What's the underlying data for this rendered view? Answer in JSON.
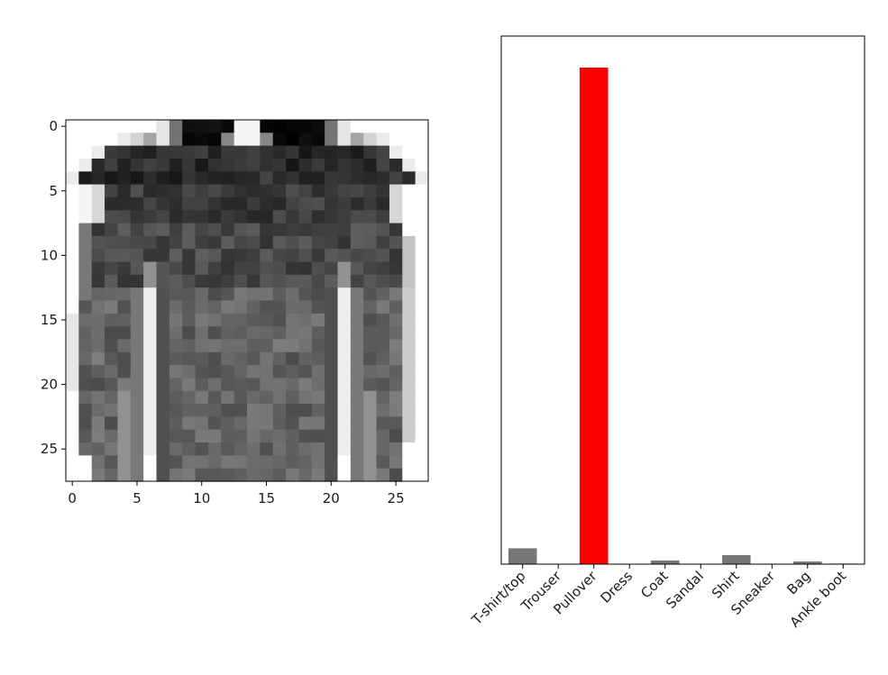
{
  "chart_data": [
    {
      "type": "heatmap",
      "title": "",
      "xlabel": "",
      "ylabel": "",
      "colormap": "Greys",
      "xlim": [
        -0.5,
        27.5
      ],
      "ylim": [
        27.5,
        -0.5
      ],
      "xticks": [
        0,
        5,
        10,
        15,
        20,
        25
      ],
      "yticks": [
        0,
        5,
        10,
        15,
        20,
        25
      ],
      "shape": [
        28,
        28
      ],
      "description_of_values": "28x28 grayscale image of a long-sleeved pullover; pixel intensity 0 (white) to 255 (black)"
    },
    {
      "type": "bar",
      "title": "",
      "xlabel": "",
      "ylabel": "",
      "categories": [
        "T-shirt/top",
        "Trouser",
        "Pullover",
        "Dress",
        "Coat",
        "Sandal",
        "Shirt",
        "Sneaker",
        "Bag",
        "Ankle boot"
      ],
      "values": [
        0.03,
        0.0,
        0.94,
        0.0,
        0.007,
        0.0,
        0.017,
        0.0,
        0.005,
        0.001
      ],
      "bar_colors": [
        "#777777",
        "#777777",
        "#ff0000",
        "#777777",
        "#777777",
        "#777777",
        "#777777",
        "#777777",
        "#777777",
        "#0000ff"
      ],
      "ylim": [
        0,
        1
      ],
      "yticks": [],
      "grid": false
    }
  ]
}
